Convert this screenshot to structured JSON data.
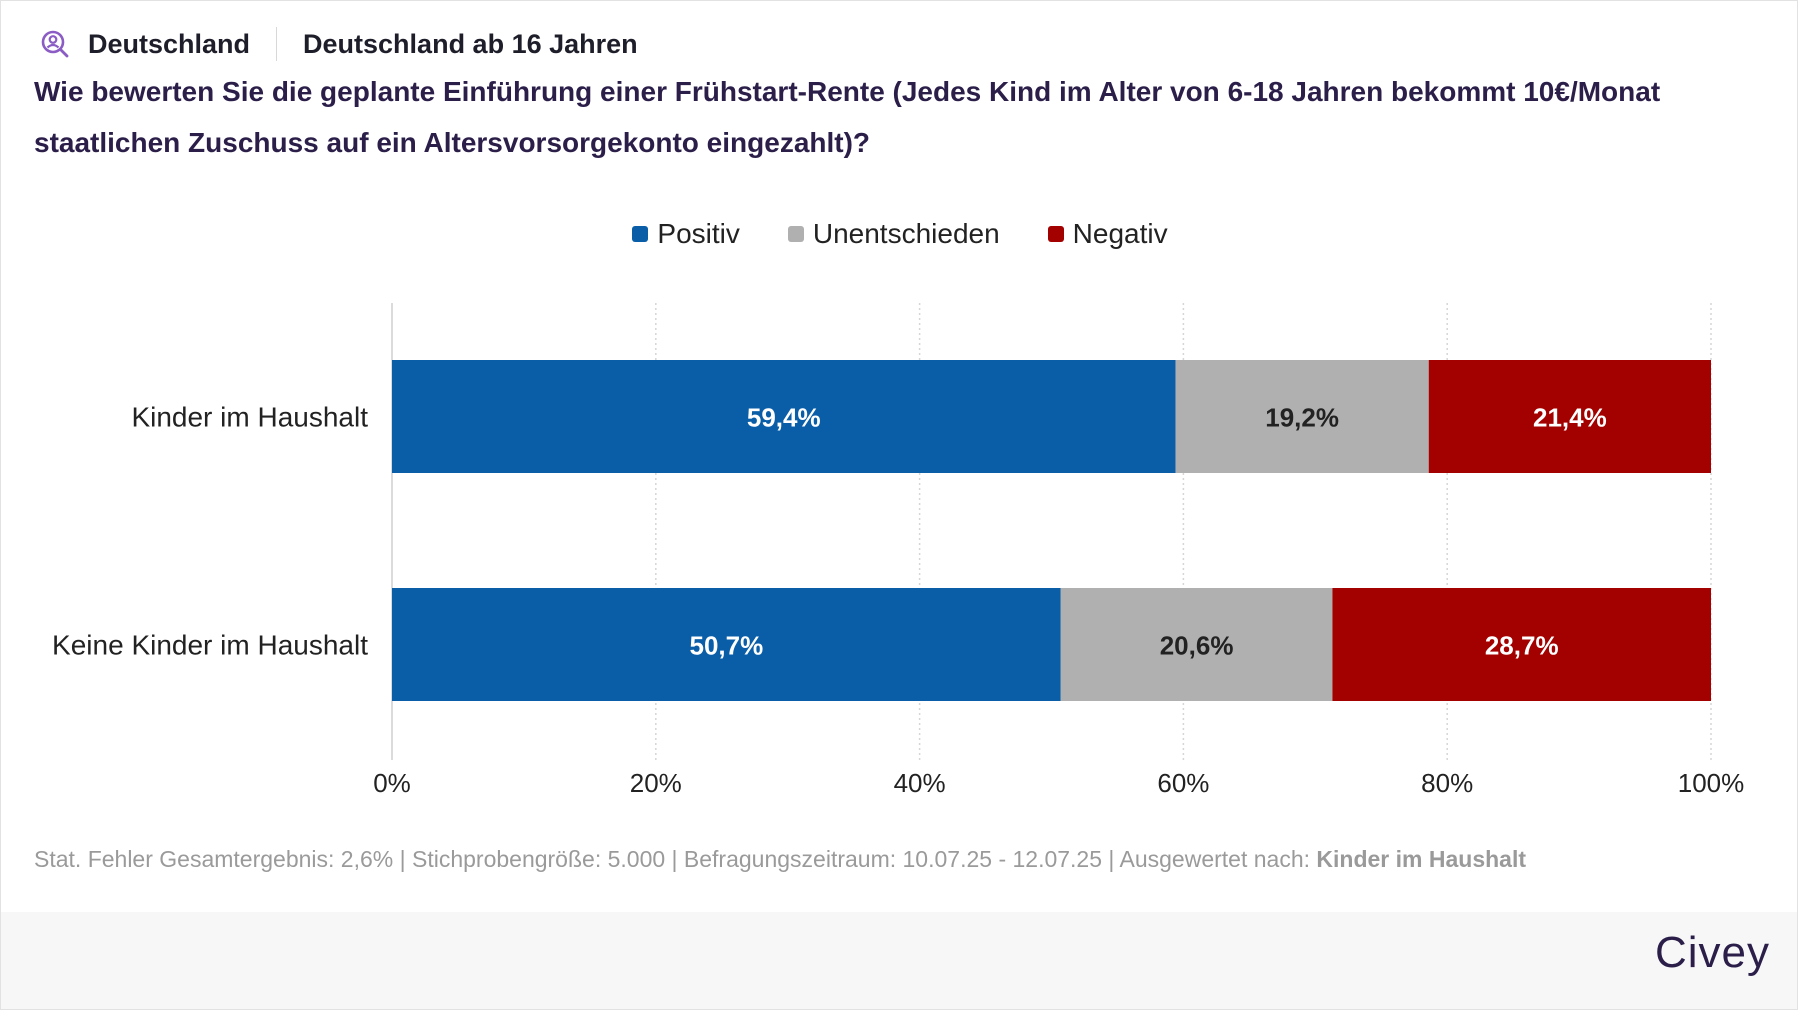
{
  "header": {
    "region": "Deutschland",
    "population": "Deutschland ab 16 Jahren"
  },
  "question": "Wie bewerten Sie die geplante Einführung einer Frühstart-Rente (Jedes Kind im Alter von 6-18 Jahren bekommt 10€/Monat staatlichen Zuschuss auf ein Altersvorsorgekonto eingezahlt)?",
  "footer": {
    "note": "Stat. Fehler Gesamtergebnis: 2,6% | Stichprobengröße: 5.000 | Befragungszeitraum: 10.07.25 - 12.07.25 | Ausgewertet nach: ",
    "grouping": "Kinder im Haushalt"
  },
  "brand": "Civey",
  "chart_data": {
    "type": "bar",
    "orientation": "horizontal",
    "stacked": true,
    "categories": [
      "Kinder im Haushalt",
      "Keine Kinder im Haushalt"
    ],
    "series": [
      {
        "name": "Positiv",
        "color": "#0a5ea8",
        "label_color": "#ffffff",
        "values": [
          59.4,
          50.7
        ],
        "labels": [
          "59,4%",
          "50,7%"
        ]
      },
      {
        "name": "Unentschieden",
        "color": "#b0b0b0",
        "label_color": "#222222",
        "values": [
          19.2,
          20.6
        ],
        "labels": [
          "19,2%",
          "20,6%"
        ]
      },
      {
        "name": "Negativ",
        "color": "#a30000",
        "label_color": "#ffffff",
        "values": [
          21.4,
          28.7
        ],
        "labels": [
          "21,4%",
          "28,7%"
        ]
      }
    ],
    "xlim": [
      0,
      100
    ],
    "xticks": [
      0,
      20,
      40,
      60,
      80,
      100
    ],
    "xtick_labels": [
      "0%",
      "20%",
      "40%",
      "60%",
      "80%",
      "100%"
    ],
    "grid": "vertical dotted",
    "legend": "top-center"
  }
}
